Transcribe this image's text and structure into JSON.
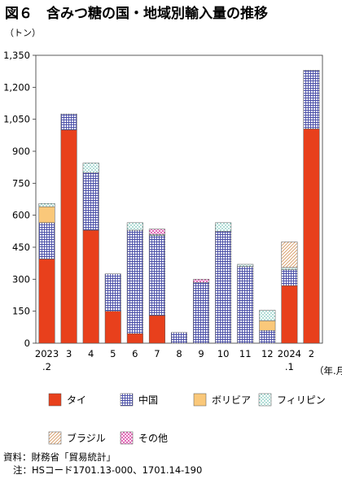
{
  "page_title": "図６　含みつ糖の国・地域別輸入量の推移",
  "y_unit": "（トン）",
  "x_unit": "（年.月）",
  "source": "資料：財務省「貿易統計」",
  "note": "注：HSコード1701.13-000、1701.14-190",
  "chart_data": {
    "type": "bar",
    "stacked": true,
    "title": "図６　含みつ糖の国・地域別輸入量の推移",
    "ylabel": "（トン）",
    "xlabel": "（年.月）",
    "ylim": [
      0,
      1350
    ],
    "yticks": [
      0,
      150,
      300,
      450,
      600,
      750,
      900,
      1050,
      1200,
      1350
    ],
    "ytick_labels": [
      "0",
      "150",
      "300",
      "450",
      "600",
      "750",
      "900",
      "1,050",
      "1,200",
      "1,350"
    ],
    "categories": [
      "2023.2",
      "3",
      "4",
      "5",
      "6",
      "7",
      "8",
      "9",
      "10",
      "11",
      "12",
      "2024.1",
      "2"
    ],
    "tick_labels": [
      [
        "2023",
        ".2"
      ],
      [
        "3"
      ],
      [
        "4"
      ],
      [
        "5"
      ],
      [
        "6"
      ],
      [
        "7"
      ],
      [
        "8"
      ],
      [
        "9"
      ],
      [
        "10"
      ],
      [
        "11"
      ],
      [
        "12"
      ],
      [
        "2024",
        ".1"
      ],
      [
        "2"
      ]
    ],
    "series": [
      {
        "name": "タイ",
        "pattern": "solid",
        "color": "#e8401c",
        "values": [
          395,
          1000,
          530,
          150,
          45,
          130,
          0,
          0,
          0,
          0,
          0,
          270,
          1005
        ]
      },
      {
        "name": "中国",
        "pattern": "grid",
        "color": "#4a4fa8",
        "values": [
          170,
          75,
          270,
          175,
          485,
          375,
          50,
          285,
          525,
          360,
          60,
          75,
          275
        ]
      },
      {
        "name": "ボリビア",
        "pattern": "fill",
        "color": "#fac87a",
        "values": [
          75,
          0,
          0,
          0,
          0,
          0,
          0,
          0,
          0,
          0,
          45,
          0,
          0
        ]
      },
      {
        "name": "フィリピン",
        "pattern": "dots",
        "color": "#3aa99a",
        "values": [
          15,
          0,
          45,
          0,
          35,
          5,
          0,
          0,
          40,
          10,
          50,
          10,
          0
        ]
      },
      {
        "name": "ブラジル",
        "pattern": "diag",
        "color": "#e0a070",
        "values": [
          0,
          0,
          0,
          0,
          0,
          0,
          0,
          0,
          0,
          0,
          0,
          120,
          0
        ]
      },
      {
        "name": "その他",
        "pattern": "cross",
        "color": "#d83aa0",
        "values": [
          0,
          0,
          0,
          0,
          0,
          25,
          0,
          15,
          0,
          0,
          0,
          0,
          0
        ]
      }
    ],
    "grid": false,
    "legend": "bottom"
  }
}
